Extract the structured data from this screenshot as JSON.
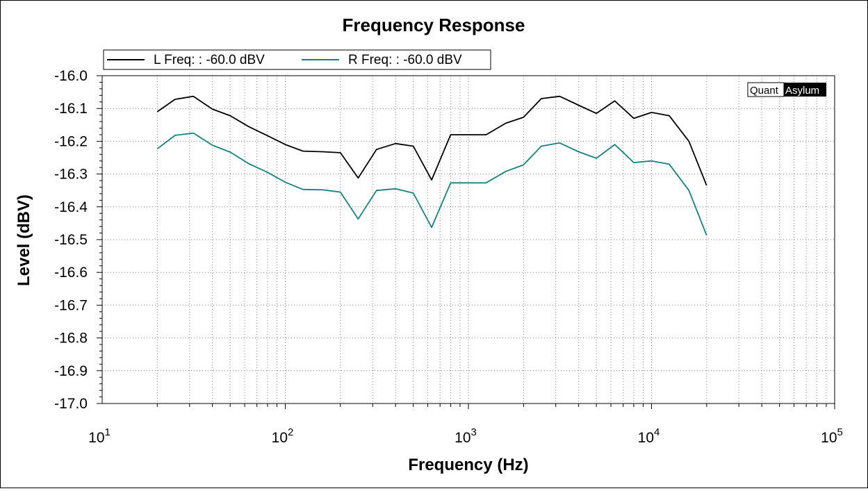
{
  "chart_data": {
    "type": "line",
    "title": "Frequency Response",
    "xlabel": "Frequency (Hz)",
    "ylabel": "Level (dBV)",
    "xscale": "log",
    "xlim": [
      10,
      100000
    ],
    "ylim": [
      -17.0,
      -16.0
    ],
    "grid": true,
    "legend_position": "top-left",
    "x_tick_labels": [
      {
        "base": "10",
        "exp": "1"
      },
      {
        "base": "10",
        "exp": "2"
      },
      {
        "base": "10",
        "exp": "3"
      },
      {
        "base": "10",
        "exp": "4"
      },
      {
        "base": "10",
        "exp": "5"
      }
    ],
    "y_tick_labels": [
      "-16.0",
      "-16.1",
      "-16.2",
      "-16.3",
      "-16.4",
      "-16.5",
      "-16.6",
      "-16.7",
      "-16.8",
      "-16.9",
      "-17.0"
    ],
    "x": [
      20,
      25,
      31.5,
      40,
      50,
      63,
      80,
      100,
      125,
      160,
      200,
      250,
      315,
      400,
      500,
      630,
      800,
      1000,
      1250,
      1600,
      2000,
      2500,
      3150,
      4000,
      5000,
      6300,
      8000,
      10000,
      12500,
      16000,
      20000
    ],
    "series": [
      {
        "name": "L Freq: : -60.0 dBV",
        "color": "#000000",
        "values": [
          -16.11,
          -16.072,
          -16.063,
          -16.102,
          -16.122,
          -16.155,
          -16.183,
          -16.21,
          -16.23,
          -16.232,
          -16.235,
          -16.312,
          -16.225,
          -16.207,
          -16.215,
          -16.318,
          -16.18,
          -16.18,
          -16.18,
          -16.145,
          -16.127,
          -16.07,
          -16.063,
          -16.09,
          -16.115,
          -16.077,
          -16.13,
          -16.112,
          -16.122,
          -16.2,
          -16.335
        ]
      },
      {
        "name": "R Freq: : -60.0 dBV",
        "color": "#128282",
        "values": [
          -16.223,
          -16.182,
          -16.175,
          -16.212,
          -16.233,
          -16.268,
          -16.295,
          -16.325,
          -16.347,
          -16.348,
          -16.355,
          -16.437,
          -16.35,
          -16.345,
          -16.358,
          -16.463,
          -16.327,
          -16.327,
          -16.327,
          -16.292,
          -16.272,
          -16.215,
          -16.205,
          -16.232,
          -16.252,
          -16.21,
          -16.265,
          -16.26,
          -16.27,
          -16.35,
          -16.487
        ]
      }
    ]
  },
  "watermark": {
    "part1": "Quant",
    "part2": "Asylum"
  },
  "colors": {
    "grid": "#7f7f7f",
    "axis": "#000000"
  }
}
